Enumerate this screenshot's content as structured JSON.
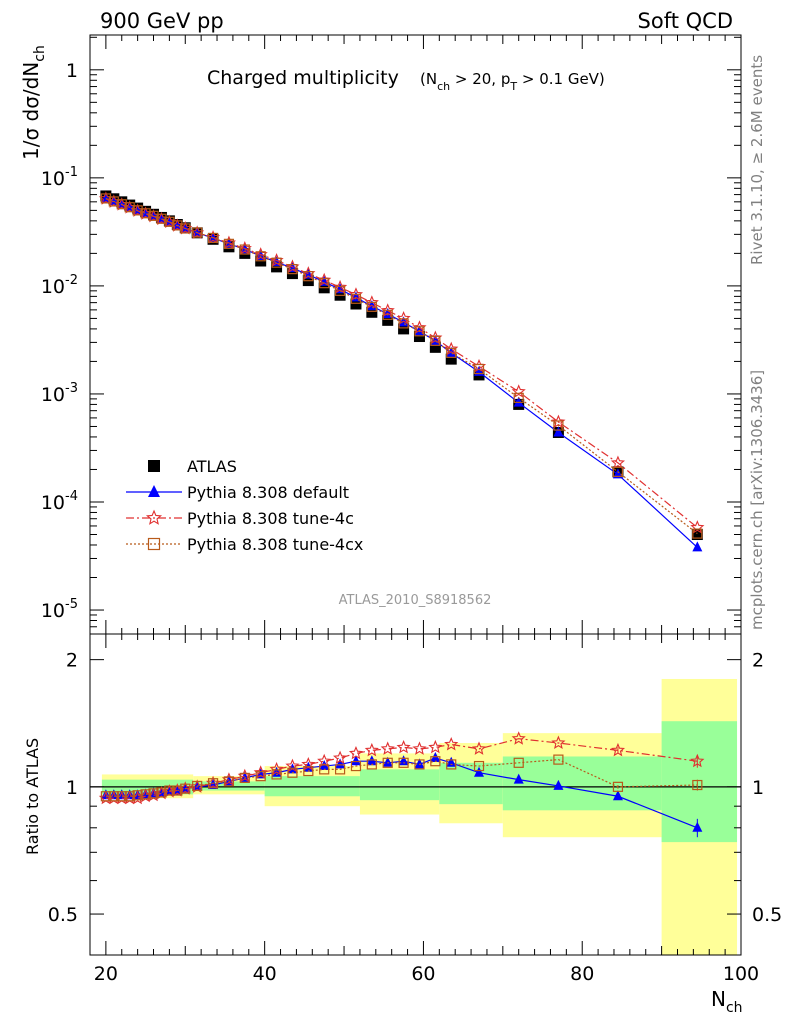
{
  "header": {
    "left": "900 GeV pp",
    "right": "Soft QCD"
  },
  "side_labels": {
    "rivet": "Rivet 3.1.10, ≥ 2.6M events",
    "mcplots": "mcplots.cern.ch [arXiv:1306.3436]"
  },
  "chart_data": [
    {
      "type": "scatter",
      "title": "Charged multiplicity",
      "subtitle": "(N_ch > 20, p_T > 0.1 GeV)",
      "xlabel": "N_ch",
      "ylabel": "1/σ dσ/dN_ch",
      "y_scale": "log",
      "ylim": [
        6e-06,
        2.1
      ],
      "xlim": [
        18,
        100
      ],
      "x_ticks": [
        "20",
        "40",
        "60",
        "80",
        "100"
      ],
      "y_ticks": [
        "10^-5",
        "10^-4",
        "10^-3",
        "10^-2",
        "10^-1",
        "1"
      ],
      "watermark": "ATLAS_2010_S8918562",
      "legend_position": "lower-left",
      "series": [
        {
          "name": "ATLAS",
          "color": "#000000",
          "marker": "square",
          "x": [
            20,
            21,
            22,
            23,
            24,
            25,
            26,
            27,
            28,
            29,
            30,
            31.5,
            33.5,
            35.5,
            37.5,
            39.5,
            41.5,
            43.5,
            45.5,
            47.5,
            49.5,
            51.5,
            53.5,
            55.5,
            57.5,
            59.5,
            61.5,
            63.5,
            67,
            72,
            77,
            84.5,
            94.5
          ],
          "y": [
            0.068,
            0.064,
            0.06,
            0.056,
            0.0525,
            0.049,
            0.046,
            0.043,
            0.04,
            0.037,
            0.0345,
            0.031,
            0.027,
            0.023,
            0.02,
            0.017,
            0.015,
            0.013,
            0.0112,
            0.0096,
            0.0082,
            0.0068,
            0.0057,
            0.0048,
            0.004,
            0.0034,
            0.0027,
            0.0021,
            0.0015,
            0.0008,
            0.00044,
            0.00019,
            5e-05
          ]
        },
        {
          "name": "Pythia 8.308 default",
          "color": "#0000ff",
          "marker": "triangle",
          "line": "solid",
          "x": [
            20,
            21,
            22,
            23,
            24,
            25,
            26,
            27,
            28,
            29,
            30,
            31.5,
            33.5,
            35.5,
            37.5,
            39.5,
            41.5,
            43.5,
            45.5,
            47.5,
            49.5,
            51.5,
            53.5,
            55.5,
            57.5,
            59.5,
            61.5,
            63.5,
            67,
            72,
            77,
            84.5,
            94.5
          ],
          "y": [
            0.064,
            0.061,
            0.057,
            0.0535,
            0.05,
            0.047,
            0.0445,
            0.0415,
            0.039,
            0.0362,
            0.0338,
            0.031,
            0.0277,
            0.0245,
            0.0218,
            0.0189,
            0.0166,
            0.0146,
            0.0127,
            0.0109,
            0.0093,
            0.0078,
            0.0065,
            0.0055,
            0.0046,
            0.0038,
            0.0031,
            0.0024,
            0.0016,
            0.00083,
            0.00044,
            0.00018,
            3.8e-05
          ]
        },
        {
          "name": "Pythia 8.308 tune-4c",
          "color": "#e03030",
          "marker": "star",
          "line": "dashdot",
          "x": [
            20,
            21,
            22,
            23,
            24,
            25,
            26,
            27,
            28,
            29,
            30,
            31.5,
            33.5,
            35.5,
            37.5,
            39.5,
            41.5,
            43.5,
            45.5,
            47.5,
            49.5,
            51.5,
            53.5,
            55.5,
            57.5,
            59.5,
            61.5,
            63.5,
            67,
            72,
            77,
            84.5,
            94.5
          ],
          "y": [
            0.064,
            0.06,
            0.0565,
            0.053,
            0.0495,
            0.0465,
            0.044,
            0.0415,
            0.039,
            0.036,
            0.034,
            0.031,
            0.028,
            0.025,
            0.0222,
            0.0195,
            0.0172,
            0.015,
            0.013,
            0.0113,
            0.0097,
            0.0083,
            0.007,
            0.0059,
            0.005,
            0.0041,
            0.0033,
            0.0026,
            0.0018,
            0.00105,
            0.00055,
            0.00023,
            5.8e-05
          ]
        },
        {
          "name": "Pythia 8.308 tune-4cx",
          "color": "#b85a1a",
          "marker": "open-square",
          "line": "dotted",
          "x": [
            20,
            21,
            22,
            23,
            24,
            25,
            26,
            27,
            28,
            29,
            30,
            31.5,
            33.5,
            35.5,
            37.5,
            39.5,
            41.5,
            43.5,
            45.5,
            47.5,
            49.5,
            51.5,
            53.5,
            55.5,
            57.5,
            59.5,
            61.5,
            63.5,
            67,
            72,
            77,
            84.5,
            94.5
          ],
          "y": [
            0.0645,
            0.0605,
            0.057,
            0.0535,
            0.05,
            0.047,
            0.0445,
            0.0418,
            0.0392,
            0.0363,
            0.034,
            0.0312,
            0.0278,
            0.0245,
            0.0217,
            0.0188,
            0.0164,
            0.0143,
            0.0123,
            0.0106,
            0.009,
            0.0076,
            0.0064,
            0.0054,
            0.0045,
            0.0038,
            0.0031,
            0.0024,
            0.0017,
            0.00092,
            0.00051,
            0.00019,
            5.1e-05
          ]
        }
      ]
    },
    {
      "type": "scatter",
      "ylabel": "Ratio to ATLAS",
      "xlabel": "N_ch",
      "y_scale": "log",
      "ylim": [
        0.4,
        2.3
      ],
      "xlim": [
        18,
        100
      ],
      "y_ticks": [
        "0.5",
        "1",
        "2"
      ],
      "x_ticks": [
        "20",
        "40",
        "60",
        "80",
        "100"
      ],
      "reference_line": 1.0,
      "uncertainty_bands": {
        "outer_color": "#ffff99",
        "inner_color": "#99ff99",
        "bins": [
          {
            "x0": 19.5,
            "x1": 31,
            "outer": [
              0.94,
              1.07
            ],
            "inner": [
              0.96,
              1.04
            ]
          },
          {
            "x0": 31,
            "x1": 40,
            "outer": [
              0.96,
              1.06
            ],
            "inner": [
              0.98,
              1.03
            ]
          },
          {
            "x0": 40,
            "x1": 52,
            "outer": [
              0.9,
              1.12
            ],
            "inner": [
              0.95,
              1.06
            ]
          },
          {
            "x0": 52,
            "x1": 62,
            "outer": [
              0.86,
              1.2
            ],
            "inner": [
              0.93,
              1.1
            ]
          },
          {
            "x0": 62,
            "x1": 70,
            "outer": [
              0.82,
              1.27
            ],
            "inner": [
              0.91,
              1.14
            ]
          },
          {
            "x0": 70,
            "x1": 90,
            "outer": [
              0.76,
              1.34
            ],
            "inner": [
              0.88,
              1.18
            ]
          },
          {
            "x0": 90,
            "x1": 99.5,
            "outer": [
              0.35,
              1.8
            ],
            "inner": [
              0.74,
              1.43
            ]
          }
        ]
      },
      "series": [
        {
          "name": "Pythia 8.308 default",
          "color": "#0000ff",
          "marker": "triangle",
          "line": "solid",
          "x": [
            20,
            21,
            22,
            23,
            24,
            25,
            26,
            27,
            28,
            29,
            30,
            31.5,
            33.5,
            35.5,
            37.5,
            39.5,
            41.5,
            43.5,
            45.5,
            47.5,
            49.5,
            51.5,
            53.5,
            55.5,
            57.5,
            59.5,
            61.5,
            63.5,
            67,
            72,
            77,
            84.5,
            94.5
          ],
          "y": [
            0.955,
            0.955,
            0.955,
            0.955,
            0.955,
            0.96,
            0.965,
            0.97,
            0.975,
            0.98,
            0.99,
            1.0,
            1.01,
            1.03,
            1.05,
            1.07,
            1.08,
            1.1,
            1.11,
            1.12,
            1.13,
            1.15,
            1.15,
            1.14,
            1.15,
            1.13,
            1.17,
            1.14,
            1.08,
            1.04,
            1.005,
            0.95,
            0.8
          ],
          "y_err": [
            0,
            0,
            0,
            0,
            0,
            0,
            0,
            0,
            0,
            0,
            0,
            0,
            0,
            0,
            0,
            0,
            0,
            0,
            0,
            0,
            0,
            0,
            0,
            0,
            0,
            0,
            0,
            0,
            0,
            0,
            0,
            0.01,
            0.04
          ]
        },
        {
          "name": "Pythia 8.308 tune-4c",
          "color": "#e03030",
          "marker": "star",
          "line": "dashdot",
          "x": [
            20,
            21,
            22,
            23,
            24,
            25,
            26,
            27,
            28,
            29,
            30,
            31.5,
            33.5,
            35.5,
            37.5,
            39.5,
            41.5,
            43.5,
            45.5,
            47.5,
            49.5,
            51.5,
            53.5,
            55.5,
            57.5,
            59.5,
            61.5,
            63.5,
            67,
            72,
            77,
            84.5,
            94.5
          ],
          "y": [
            0.94,
            0.94,
            0.94,
            0.94,
            0.94,
            0.95,
            0.955,
            0.965,
            0.975,
            0.98,
            0.99,
            1.0,
            1.02,
            1.04,
            1.06,
            1.08,
            1.1,
            1.12,
            1.13,
            1.15,
            1.17,
            1.2,
            1.22,
            1.23,
            1.24,
            1.23,
            1.24,
            1.26,
            1.23,
            1.3,
            1.27,
            1.22,
            1.15
          ],
          "y_err": [
            0,
            0,
            0,
            0,
            0,
            0,
            0,
            0,
            0,
            0,
            0,
            0,
            0,
            0,
            0,
            0,
            0,
            0,
            0,
            0,
            0,
            0,
            0,
            0,
            0,
            0,
            0,
            0,
            0,
            0,
            0,
            0.02,
            0.04
          ]
        },
        {
          "name": "Pythia 8.308 tune-4cx",
          "color": "#b85a1a",
          "marker": "open-square",
          "line": "dotted",
          "x": [
            20,
            21,
            22,
            23,
            24,
            25,
            26,
            27,
            28,
            29,
            30,
            31.5,
            33.5,
            35.5,
            37.5,
            39.5,
            41.5,
            43.5,
            45.5,
            47.5,
            49.5,
            51.5,
            53.5,
            55.5,
            57.5,
            59.5,
            61.5,
            63.5,
            67,
            72,
            77,
            84.5,
            94.5
          ],
          "y": [
            0.95,
            0.95,
            0.95,
            0.95,
            0.955,
            0.96,
            0.965,
            0.97,
            0.98,
            0.98,
            0.99,
            1.005,
            1.02,
            1.03,
            1.05,
            1.06,
            1.07,
            1.08,
            1.09,
            1.1,
            1.1,
            1.12,
            1.13,
            1.14,
            1.14,
            1.13,
            1.15,
            1.13,
            1.12,
            1.14,
            1.16,
            1.0,
            1.01
          ],
          "y_err": [
            0,
            0,
            0,
            0,
            0,
            0,
            0,
            0,
            0,
            0,
            0,
            0,
            0,
            0,
            0,
            0,
            0,
            0,
            0,
            0,
            0,
            0,
            0,
            0,
            0,
            0,
            0,
            0,
            0,
            0,
            0,
            0.01,
            0.03
          ]
        }
      ]
    }
  ]
}
